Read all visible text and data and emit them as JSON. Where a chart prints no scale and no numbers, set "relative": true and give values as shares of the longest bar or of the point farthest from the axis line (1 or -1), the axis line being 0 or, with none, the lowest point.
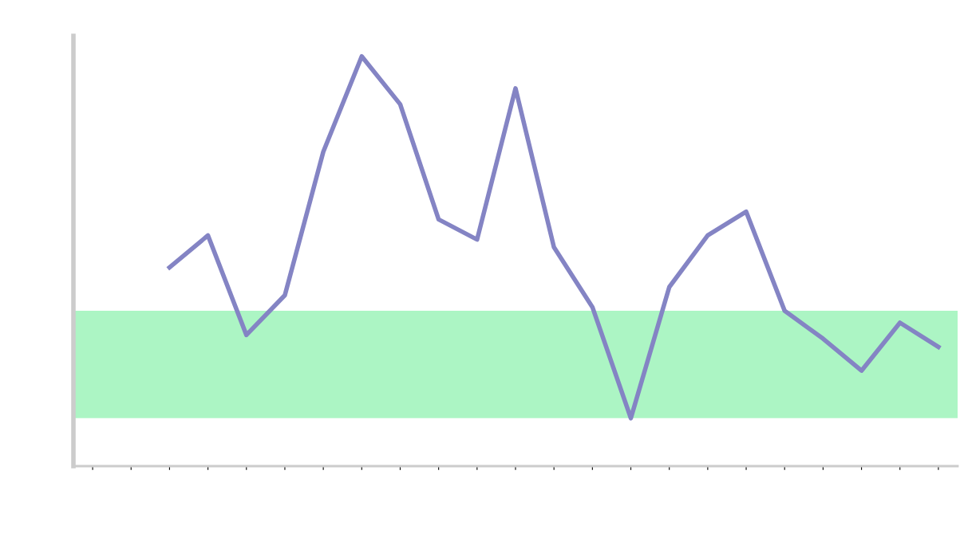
{
  "chart_data": {
    "type": "line",
    "relative": true,
    "categories": [
      null,
      null,
      null,
      null,
      null,
      null,
      null,
      null,
      null,
      null,
      null,
      null,
      null,
      null,
      null,
      null,
      null,
      null,
      null,
      null,
      null,
      null,
      null
    ],
    "series": [
      {
        "color": "#8484c4",
        "values": [
          null,
          null,
          0.485,
          0.563,
          0.32,
          0.417,
          0.767,
          1,
          0.883,
          0.602,
          0.553,
          0.922,
          0.534,
          0.388,
          0.117,
          0.437,
          0.563,
          0.621,
          0.379,
          0.311,
          0.233,
          0.35,
          0.291
        ]
      }
    ],
    "bands": [
      {
        "axis": "y",
        "from": 0.117,
        "to": 0.379,
        "color": "#7ff0a4"
      }
    ],
    "marker": "none",
    "line_style": "solid",
    "grid": false,
    "legend": false
  }
}
